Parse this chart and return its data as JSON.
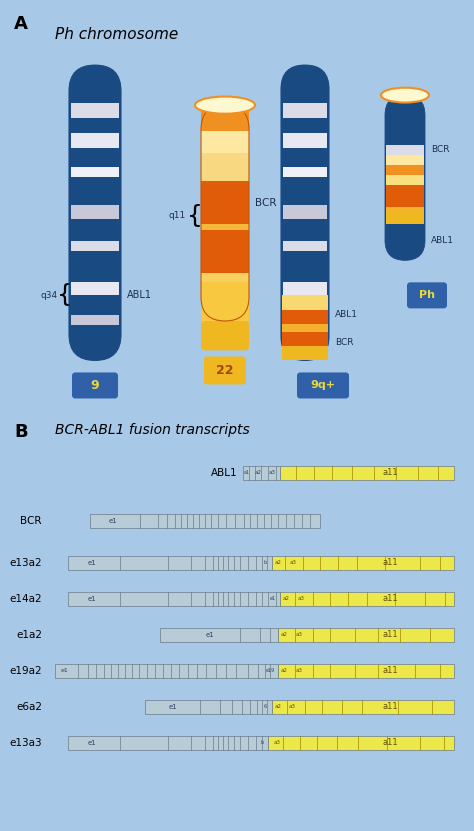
{
  "bg_color": "#a8c8e8",
  "dark_blue": "#1a4a82",
  "orange_dark": "#e05c08",
  "orange_mid": "#f09020",
  "orange_light": "#f8c840",
  "yellow_gold": "#f0b820",
  "cream": "#fef8d0",
  "silver1": "#dcdce8",
  "silver2": "#e8e8f2",
  "silver3": "#c8c8d8",
  "white_stripe": "#f0f0f8",
  "label_dark": "#1a3050",
  "box_blue": "#3060a8",
  "transcript_blue": "#b8ccd8",
  "transcript_yellow": "#ede84a",
  "transcript_border": "#6a7a8a",
  "title_A": "A",
  "title_B": "B",
  "ph_label": "Ph chromosome",
  "fusion_title": "BCR-ABL1 fusion transcripts"
}
